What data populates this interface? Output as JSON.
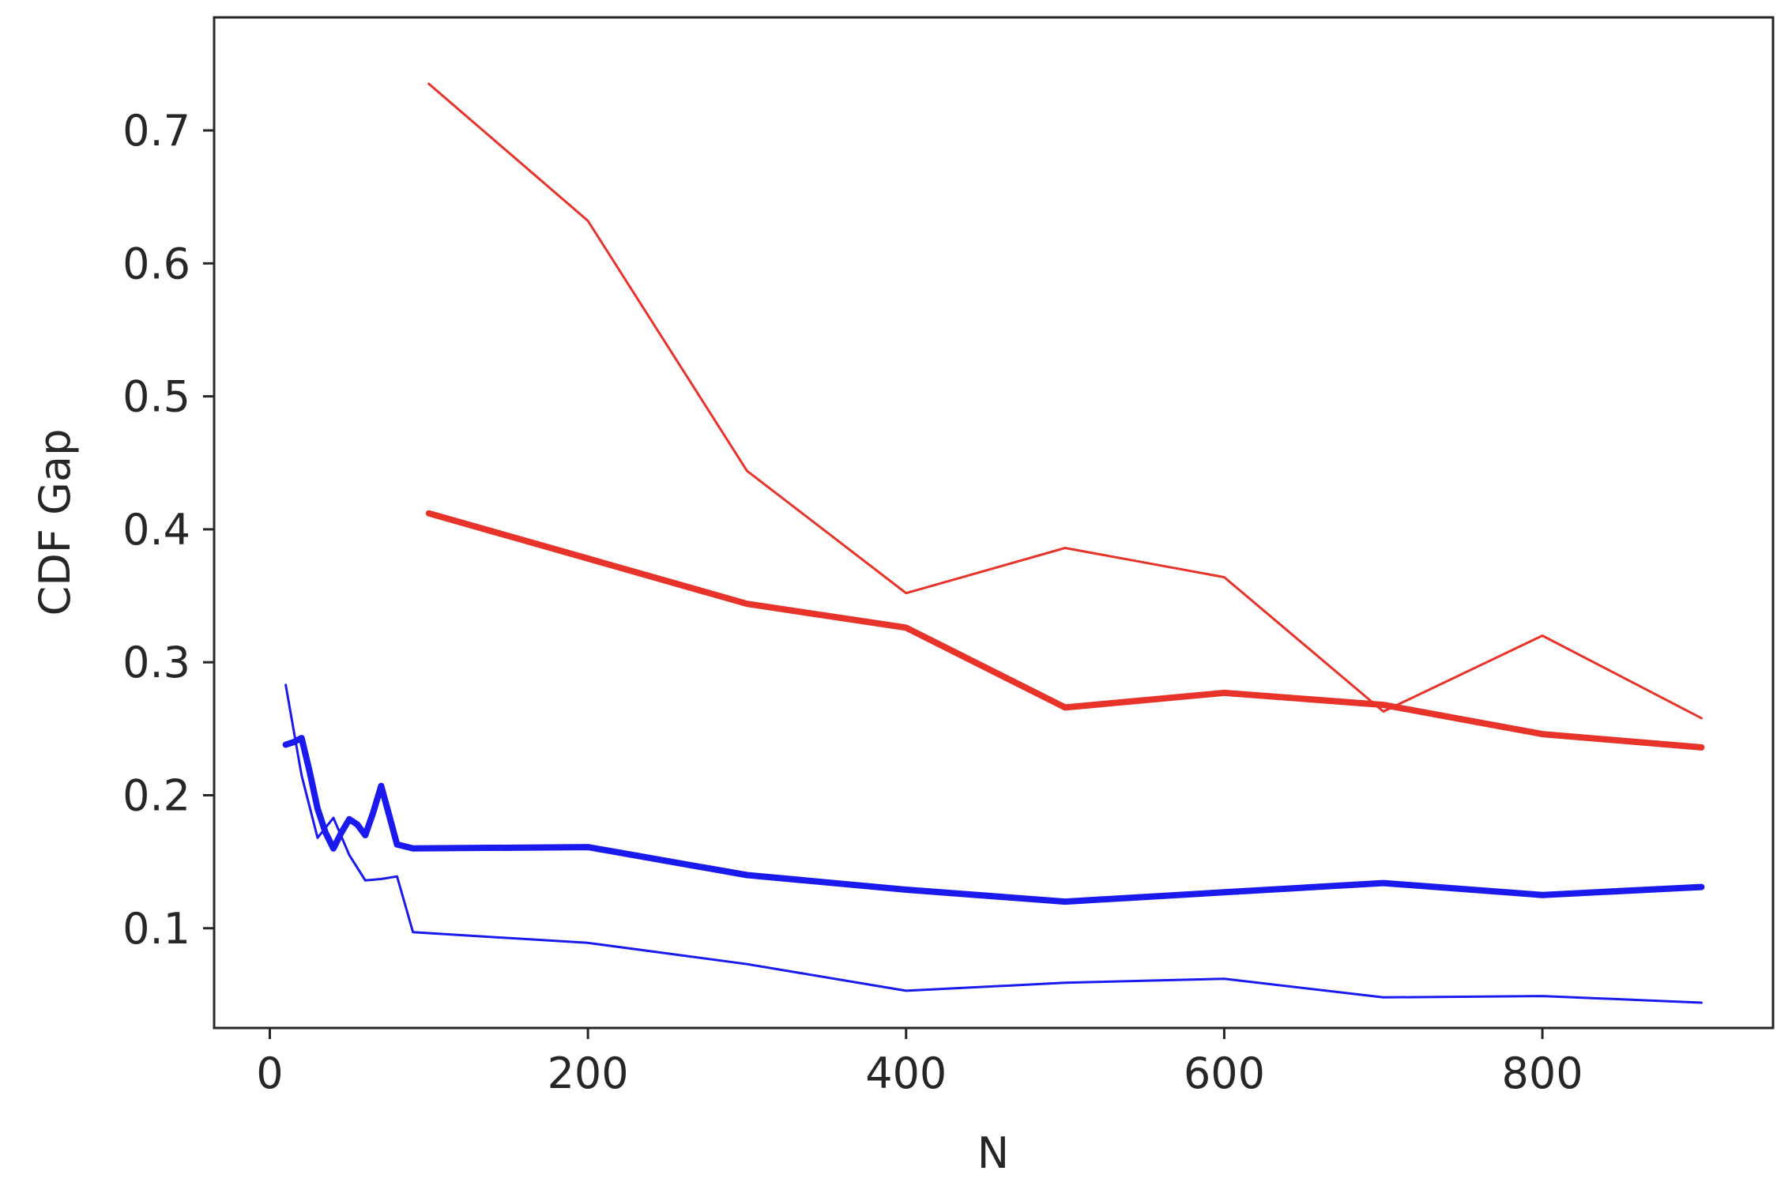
{
  "chart_data": {
    "type": "line",
    "title": "",
    "xlabel": "N",
    "ylabel": "CDF Gap",
    "xlim": [
      -35,
      945
    ],
    "ylim": [
      0.025,
      0.785
    ],
    "xticks": [
      0,
      200,
      400,
      600,
      800
    ],
    "xtick_labels": [
      "0",
      "200",
      "400",
      "600",
      "800"
    ],
    "yticks": [
      0.1,
      0.2,
      0.3,
      0.4,
      0.5,
      0.6,
      0.7
    ],
    "ytick_labels": [
      "0.1",
      "0.2",
      "0.3",
      "0.4",
      "0.5",
      "0.6",
      "0.7"
    ],
    "grid": false,
    "legend": false,
    "series": [
      {
        "color": "#e8332a",
        "weight": "thin",
        "x": [
          100,
          200,
          300,
          400,
          500,
          600,
          700,
          800,
          900
        ],
        "y": [
          0.735,
          0.632,
          0.444,
          0.352,
          0.386,
          0.364,
          0.263,
          0.32,
          0.258
        ]
      },
      {
        "color": "#e8332a",
        "weight": "thick",
        "x": [
          100,
          200,
          300,
          400,
          500,
          600,
          700,
          800,
          900
        ],
        "y": [
          0.412,
          0.378,
          0.344,
          0.326,
          0.266,
          0.277,
          0.268,
          0.246,
          0.236
        ]
      },
      {
        "color": "#1a1aee",
        "weight": "thin",
        "x": [
          10,
          20,
          30,
          40,
          50,
          60,
          70,
          80,
          90,
          200,
          300,
          400,
          500,
          600,
          700,
          800,
          900
        ],
        "y": [
          0.283,
          0.215,
          0.168,
          0.183,
          0.155,
          0.136,
          0.137,
          0.139,
          0.097,
          0.089,
          0.073,
          0.053,
          0.059,
          0.062,
          0.048,
          0.049,
          0.044
        ]
      },
      {
        "color": "#1a1aee",
        "weight": "thick",
        "x": [
          10,
          15,
          20,
          25,
          30,
          35,
          40,
          45,
          50,
          55,
          60,
          65,
          70,
          75,
          80,
          90,
          200,
          300,
          400,
          500,
          600,
          700,
          800,
          900
        ],
        "y": [
          0.238,
          0.24,
          0.243,
          0.218,
          0.19,
          0.172,
          0.16,
          0.172,
          0.182,
          0.178,
          0.17,
          0.187,
          0.207,
          0.185,
          0.163,
          0.16,
          0.161,
          0.14,
          0.129,
          0.12,
          0.127,
          0.134,
          0.125,
          0.131
        ]
      }
    ]
  }
}
